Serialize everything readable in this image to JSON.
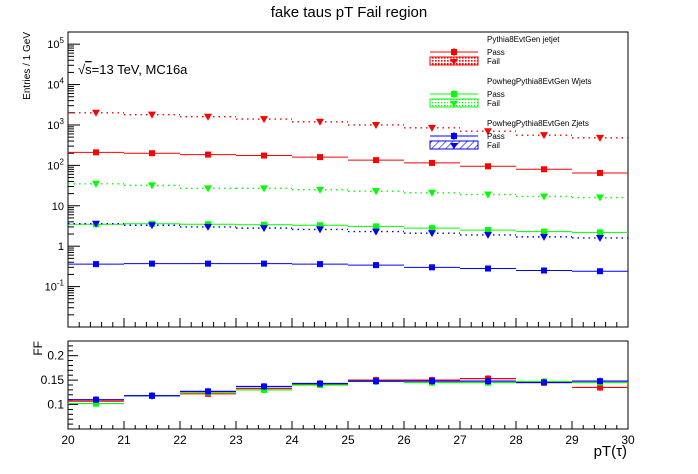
{
  "chart_data": {
    "type": "scatter",
    "title": "fake taus pT Fail region",
    "xlabel": "pT(τ)",
    "annotation": {
      "sqrt_s": "s",
      "text": "=13 TeV, MC16a"
    },
    "upper": {
      "ylabel": "Entries / 1 GeV",
      "yscale": "log",
      "ylim": [
        0.01,
        200000
      ],
      "ytick_labels": [
        {
          "value": 0.1,
          "mant": "10",
          "exp": "-1"
        },
        {
          "value": 1,
          "mant": "1",
          "exp": ""
        },
        {
          "value": 10,
          "mant": "10",
          "exp": ""
        },
        {
          "value": 100,
          "mant": "10",
          "exp": "2"
        },
        {
          "value": 1000,
          "mant": "10",
          "exp": "3"
        },
        {
          "value": 10000,
          "mant": "10",
          "exp": "4"
        },
        {
          "value": 100000,
          "mant": "10",
          "exp": "5"
        }
      ]
    },
    "lower": {
      "ylabel": "FF",
      "ylim": [
        0.05,
        0.23
      ],
      "yticks": [
        0.1,
        0.15,
        0.2
      ],
      "ytick_labels": [
        "0.1",
        "0.15",
        "0.2"
      ]
    },
    "xlim": [
      20,
      30
    ],
    "xticks": [
      20,
      21,
      22,
      23,
      24,
      25,
      26,
      27,
      28,
      29,
      30
    ],
    "xtick_labels": [
      "20",
      "21",
      "22",
      "23",
      "24",
      "25",
      "26",
      "27",
      "28",
      "29",
      "30"
    ],
    "bins": [
      20.5,
      21.5,
      22.5,
      23.5,
      24.5,
      25.5,
      26.5,
      27.5,
      28.5,
      29.5
    ],
    "series": [
      {
        "name": "Pythia8EvtGen jetjet",
        "color": "#ff0000",
        "pass": [
          210,
          200,
          185,
          175,
          160,
          135,
          115,
          95,
          80,
          65
        ],
        "fail": [
          2000,
          1800,
          1600,
          1400,
          1200,
          1000,
          850,
          700,
          560,
          480
        ],
        "ff": [
          0.107,
          0.118,
          0.122,
          0.133,
          0.142,
          0.15,
          0.15,
          0.153,
          0.145,
          0.135
        ]
      },
      {
        "name": "PowhegPythia8EvtGen Wjets",
        "color": "#00ff00",
        "pass": [
          3.5,
          3.6,
          3.5,
          3.4,
          3.3,
          3.1,
          2.8,
          2.5,
          2.3,
          2.2
        ],
        "fail": [
          35,
          32,
          27,
          27,
          25,
          23,
          21,
          19,
          17,
          16
        ],
        "ff": [
          0.102,
          0.118,
          0.125,
          0.13,
          0.14,
          0.147,
          0.145,
          0.145,
          0.147,
          0.145
        ]
      },
      {
        "name": "PowhegPythia8EvtGen Zjets",
        "color": "#0000ff",
        "pass": [
          0.36,
          0.37,
          0.37,
          0.37,
          0.36,
          0.34,
          0.3,
          0.28,
          0.25,
          0.24
        ],
        "fail": [
          3.6,
          3.3,
          3.0,
          2.8,
          2.6,
          2.3,
          2.1,
          1.9,
          1.7,
          1.6
        ],
        "ff": [
          0.11,
          0.118,
          0.127,
          0.137,
          0.143,
          0.148,
          0.148,
          0.148,
          0.145,
          0.148
        ]
      }
    ],
    "legend": {
      "placement": "top-right",
      "pass_label": "Pass",
      "fail_label": "Fail"
    }
  }
}
